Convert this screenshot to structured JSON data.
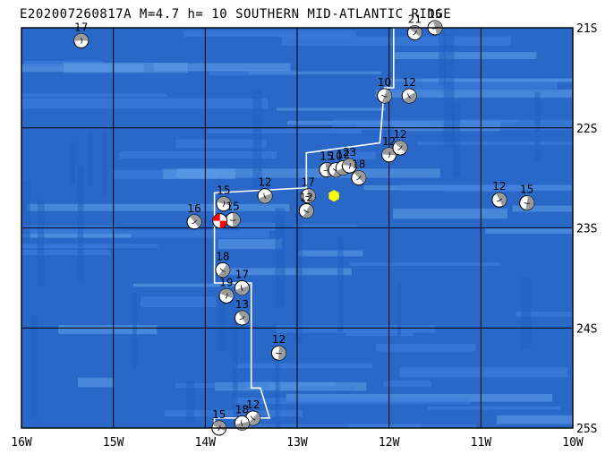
{
  "title": "E202007260817A M=4.7 h= 10 SOUTHERN MID-ATLANTIC RIDGE",
  "map": {
    "lon_range": [
      -16,
      -10
    ],
    "lat_range": [
      -25,
      -21
    ],
    "x_ticks": [
      "16W",
      "15W",
      "14W",
      "13W",
      "12W",
      "11W",
      "10W"
    ],
    "y_ticks": [
      "21S",
      "22S",
      "23S",
      "24S",
      "25S"
    ],
    "grid": true,
    "colors": {
      "ocean_deep": "#1f5fbf",
      "ocean_mid": "#3f7fdf",
      "ocean_light": "#5f9fe6",
      "grid": "#000000",
      "ridge": "#ffffff",
      "epicenter": "#ffff00",
      "event_mechanism": "#ff0000"
    }
  },
  "epicenter": {
    "lon": -12.6,
    "lat": -22.68,
    "symbol": "hexagon"
  },
  "mechanisms": [
    {
      "lon": -15.35,
      "lat": -21.13,
      "depth": "17"
    },
    {
      "lon": -11.72,
      "lat": -21.05,
      "depth": "21"
    },
    {
      "lon": -11.5,
      "lat": -21.0,
      "depth": "15"
    },
    {
      "lon": -12.05,
      "lat": -21.68,
      "depth": "10"
    },
    {
      "lon": -11.78,
      "lat": -21.68,
      "depth": "12"
    },
    {
      "lon": -12.0,
      "lat": -22.27,
      "depth": "12"
    },
    {
      "lon": -11.88,
      "lat": -22.2,
      "depth": "12"
    },
    {
      "lon": -12.68,
      "lat": -22.42,
      "depth": "15"
    },
    {
      "lon": -12.58,
      "lat": -22.42,
      "depth": "10"
    },
    {
      "lon": -12.5,
      "lat": -22.4,
      "depth": "12"
    },
    {
      "lon": -12.43,
      "lat": -22.38,
      "depth": "23"
    },
    {
      "lon": -12.33,
      "lat": -22.5,
      "depth": "18"
    },
    {
      "lon": -12.88,
      "lat": -22.68,
      "depth": "17"
    },
    {
      "lon": -12.9,
      "lat": -22.83,
      "depth": "12"
    },
    {
      "lon": -13.35,
      "lat": -22.68,
      "depth": "12"
    },
    {
      "lon": -13.8,
      "lat": -22.76,
      "depth": "15"
    },
    {
      "lon": -14.12,
      "lat": -22.94,
      "depth": "16"
    },
    {
      "lon": -13.7,
      "lat": -22.92,
      "depth": "15"
    },
    {
      "lon": -13.81,
      "lat": -23.42,
      "depth": "18"
    },
    {
      "lon": -13.6,
      "lat": -23.6,
      "depth": "17"
    },
    {
      "lon": -13.77,
      "lat": -23.68,
      "depth": "19"
    },
    {
      "lon": -13.6,
      "lat": -23.9,
      "depth": "13"
    },
    {
      "lon": -13.2,
      "lat": -24.25,
      "depth": "12"
    },
    {
      "lon": -13.48,
      "lat": -24.9,
      "depth": "12"
    },
    {
      "lon": -13.6,
      "lat": -24.95,
      "depth": "18"
    },
    {
      "lon": -13.85,
      "lat": -25.0,
      "depth": "15"
    },
    {
      "lon": -10.8,
      "lat": -22.72,
      "depth": "12"
    },
    {
      "lon": -10.5,
      "lat": -22.75,
      "depth": "15"
    }
  ],
  "event_mechanism": {
    "lon": -13.84,
    "lat": -22.93
  }
}
